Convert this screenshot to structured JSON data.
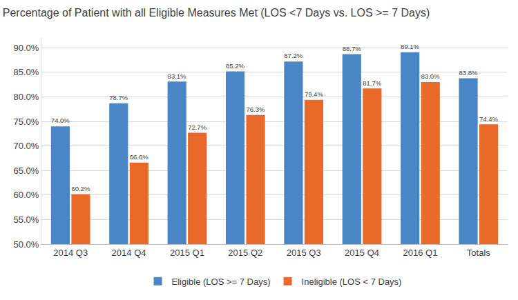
{
  "chart_data": {
    "type": "bar",
    "title": "Percentage of Patient with all Eligible Measures Met (LOS <7 Days vs. LOS >= 7 Days)",
    "categories": [
      "2014 Q3",
      "2014 Q4",
      "2015 Q1",
      "2015 Q2",
      "2015 Q3",
      "2015 Q4",
      "2016 Q1",
      "Totals"
    ],
    "series": [
      {
        "name": "Eligible (LOS >= 7 Days)",
        "color": "#4a85c5",
        "values": [
          74.0,
          78.7,
          83.1,
          85.2,
          87.2,
          88.7,
          89.1,
          83.8
        ],
        "value_labels": [
          "74.0%",
          "78.7%",
          "83.1%",
          "85.2%",
          "87.2%",
          "88.7%",
          "89.1%",
          "83.8%"
        ]
      },
      {
        "name": "Ineligible (LOS < 7 Days)",
        "color": "#e8692a",
        "values": [
          60.2,
          66.6,
          72.7,
          76.3,
          79.4,
          81.7,
          83.0,
          74.4
        ],
        "value_labels": [
          "60.2%",
          "66.6%",
          "72.7%",
          "76.3%",
          "79.4%",
          "81.7%",
          "83.0%",
          "74.4%"
        ]
      }
    ],
    "ylim": [
      50,
      92
    ],
    "yticks": [
      {
        "value": 50,
        "label": "50.0%"
      },
      {
        "value": 55,
        "label": "55.0%"
      },
      {
        "value": 60,
        "label": "60.0%"
      },
      {
        "value": 65,
        "label": "65.0%"
      },
      {
        "value": 70,
        "label": "70.0%"
      },
      {
        "value": 75,
        "label": "75.0%"
      },
      {
        "value": 80,
        "label": "80.0%"
      },
      {
        "value": 85,
        "label": "85.0%"
      },
      {
        "value": 90,
        "label": "90.0%"
      }
    ],
    "grid": true,
    "legend": "bottom",
    "data_labels": true
  }
}
